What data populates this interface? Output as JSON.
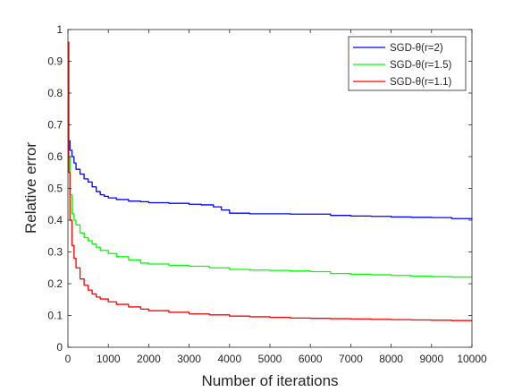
{
  "chart_data": {
    "type": "line",
    "title": "",
    "xlabel": "Number of iterations",
    "ylabel": "Relative error",
    "xlim": [
      0,
      10000
    ],
    "ylim": [
      0,
      1
    ],
    "xticks": [
      0,
      1000,
      2000,
      3000,
      4000,
      5000,
      6000,
      7000,
      8000,
      9000,
      10000
    ],
    "yticks": [
      0,
      0.1,
      0.2,
      0.3,
      0.4,
      0.5,
      0.6,
      0.7,
      0.8,
      0.9,
      1
    ],
    "grid": false,
    "legend_position": "top-right",
    "series": [
      {
        "name": "SGD-θ(r=2)",
        "color": "#0000ff",
        "x": [
          0,
          20,
          50,
          100,
          150,
          200,
          300,
          400,
          500,
          600,
          700,
          800,
          900,
          1000,
          1200,
          1500,
          1800,
          2000,
          2500,
          3000,
          3300,
          3600,
          3800,
          4000,
          4500,
          5000,
          5500,
          6000,
          6500,
          7000,
          7500,
          8000,
          8500,
          9000,
          9500,
          10000
        ],
        "y": [
          0.96,
          0.65,
          0.62,
          0.6,
          0.58,
          0.56,
          0.545,
          0.53,
          0.52,
          0.505,
          0.49,
          0.48,
          0.475,
          0.47,
          0.465,
          0.46,
          0.458,
          0.455,
          0.453,
          0.45,
          0.448,
          0.442,
          0.432,
          0.422,
          0.42,
          0.42,
          0.419,
          0.419,
          0.415,
          0.413,
          0.412,
          0.41,
          0.409,
          0.408,
          0.405,
          0.402
        ]
      },
      {
        "name": "SGD-θ(r=1.5)",
        "color": "#00ff00",
        "x": [
          0,
          20,
          50,
          100,
          150,
          200,
          300,
          400,
          500,
          600,
          700,
          800,
          1000,
          1200,
          1500,
          1800,
          2000,
          2500,
          3000,
          3500,
          4000,
          4500,
          5000,
          5500,
          6000,
          6500,
          7000,
          7500,
          8000,
          8500,
          9000,
          9500,
          10000
        ],
        "y": [
          0.96,
          0.6,
          0.48,
          0.42,
          0.4,
          0.385,
          0.36,
          0.345,
          0.335,
          0.325,
          0.315,
          0.305,
          0.295,
          0.285,
          0.275,
          0.265,
          0.262,
          0.258,
          0.255,
          0.25,
          0.245,
          0.243,
          0.242,
          0.24,
          0.238,
          0.232,
          0.23,
          0.228,
          0.226,
          0.224,
          0.222,
          0.221,
          0.22
        ]
      },
      {
        "name": "SGD-θ(r=1.1)",
        "color": "#ff0000",
        "x": [
          0,
          20,
          50,
          100,
          150,
          200,
          300,
          400,
          500,
          600,
          700,
          800,
          1000,
          1200,
          1500,
          1800,
          2000,
          2500,
          3000,
          3500,
          4000,
          4500,
          5000,
          5500,
          6000,
          6500,
          7000,
          7500,
          8000,
          8500,
          9000,
          9500,
          10000
        ],
        "y": [
          0.96,
          0.55,
          0.4,
          0.32,
          0.28,
          0.25,
          0.215,
          0.195,
          0.18,
          0.168,
          0.158,
          0.152,
          0.143,
          0.135,
          0.127,
          0.12,
          0.115,
          0.11,
          0.105,
          0.102,
          0.098,
          0.096,
          0.094,
          0.092,
          0.091,
          0.09,
          0.089,
          0.088,
          0.087,
          0.086,
          0.085,
          0.084,
          0.083
        ]
      }
    ]
  }
}
